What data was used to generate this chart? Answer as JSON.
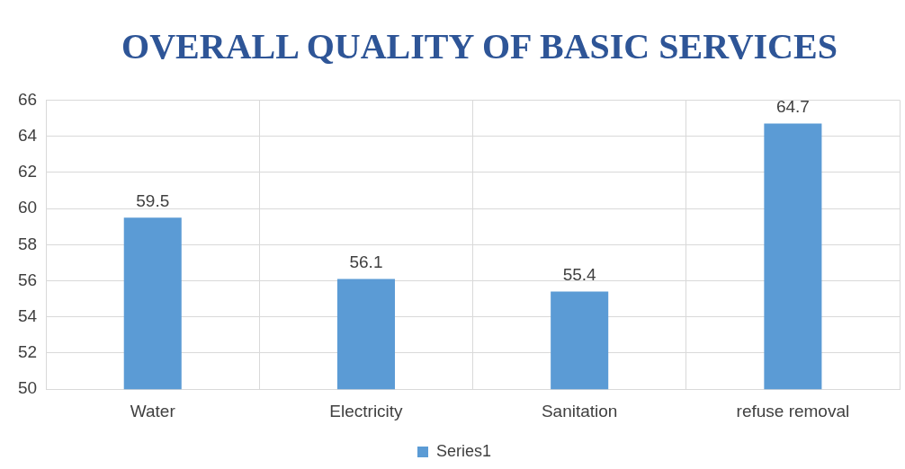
{
  "chart_data": {
    "type": "bar",
    "title": "OVERALL QUALITY OF BASIC SERVICES",
    "categories": [
      "Water",
      "Electricity",
      "Sanitation",
      "refuse removal"
    ],
    "series": [
      {
        "name": "Series1",
        "color": "#5b9bd5",
        "values": [
          59.5,
          56.1,
          55.4,
          64.7
        ]
      }
    ],
    "ylim": [
      50,
      66
    ],
    "yticks": [
      50,
      52,
      54,
      56,
      58,
      60,
      62,
      64,
      66
    ],
    "grid": true,
    "legend": "bottom",
    "data_labels": true
  }
}
